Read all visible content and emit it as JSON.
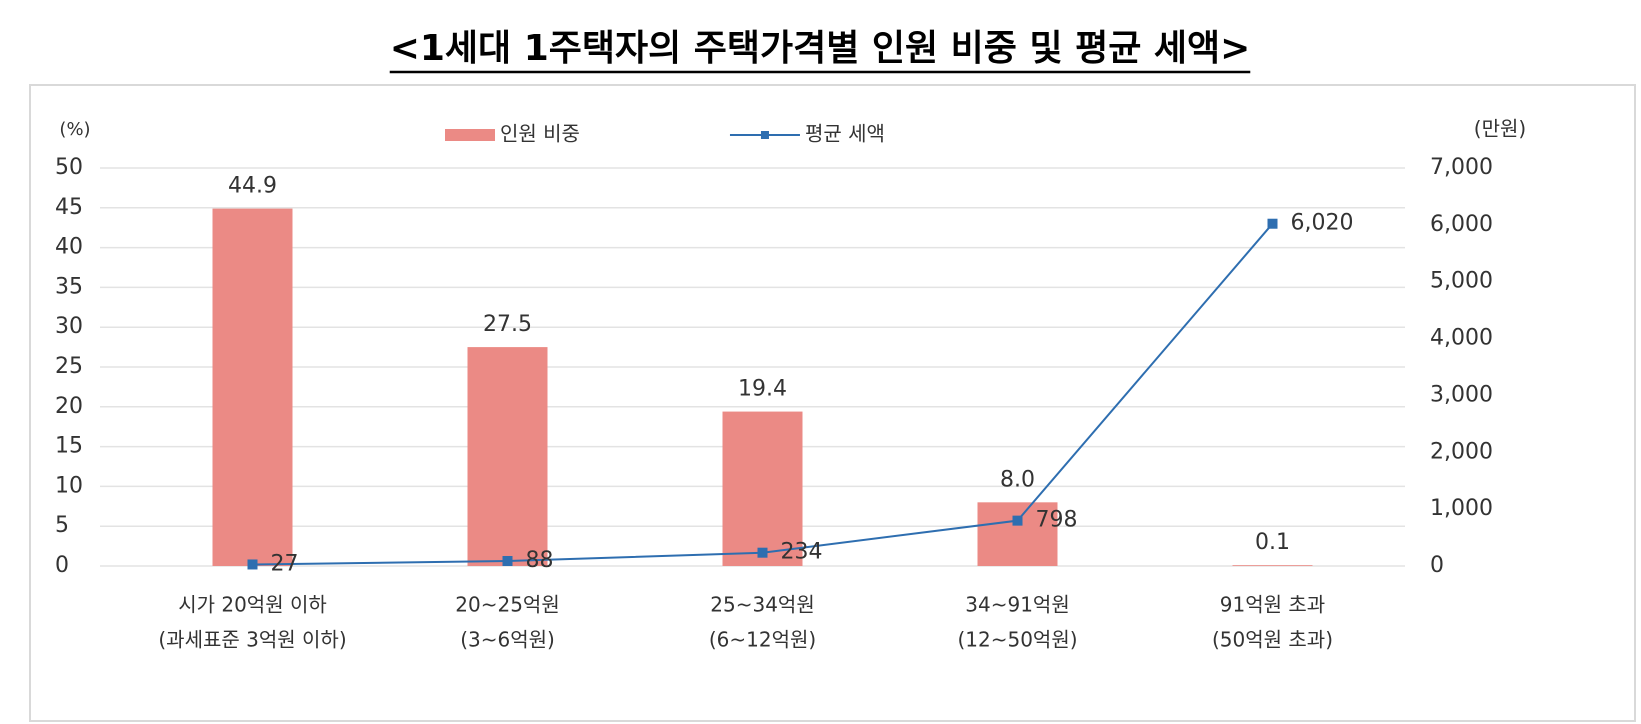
{
  "chart_data": {
    "type": "combo",
    "title": "<1세대 1주택자의 주택가격별 인원 비중 및 평균 세액>",
    "categories": [
      [
        "시가 20억원 이하",
        "(과세표준 3억원 이하)"
      ],
      [
        "20~25억원",
        "(3~6억원)"
      ],
      [
        "25~34억원",
        "(6~12억원)"
      ],
      [
        "34~91억원",
        "(12~50억원)"
      ],
      [
        "91억원 초과",
        "(50억원 초과)"
      ]
    ],
    "series": [
      {
        "name": "인원 비중",
        "type": "bar",
        "color": "#eb8a85",
        "values": [
          44.9,
          27.5,
          19.4,
          8.0,
          0.1
        ],
        "value_labels": [
          "44.9",
          "27.5",
          "19.4",
          "8.0",
          "0.1"
        ]
      },
      {
        "name": "평균 세액",
        "type": "line",
        "axis": "y2",
        "color": "#2e6eb0",
        "values": [
          27,
          88,
          234,
          798,
          6020
        ],
        "value_labels": [
          "27",
          "88",
          "234",
          "798",
          "6,020"
        ]
      }
    ],
    "ylabel": "(%)",
    "y2label": "(만원)",
    "ylim": [
      0,
      50
    ],
    "yticks": [
      0,
      5,
      10,
      15,
      20,
      25,
      30,
      35,
      40,
      45,
      50
    ],
    "y2lim": [
      0,
      7000
    ],
    "y2ticks": [
      0,
      {
        "value": 1000,
        "label": "1,000"
      },
      {
        "value": 2000,
        "label": "2,000"
      },
      {
        "value": 3000,
        "label": "3,000"
      },
      {
        "value": 4000,
        "label": "4,000"
      },
      {
        "value": 5000,
        "label": "5,000"
      },
      {
        "value": 6000,
        "label": "6,000"
      },
      {
        "value": 7000,
        "label": "7,000"
      }
    ],
    "grid": true,
    "legend": "top"
  }
}
